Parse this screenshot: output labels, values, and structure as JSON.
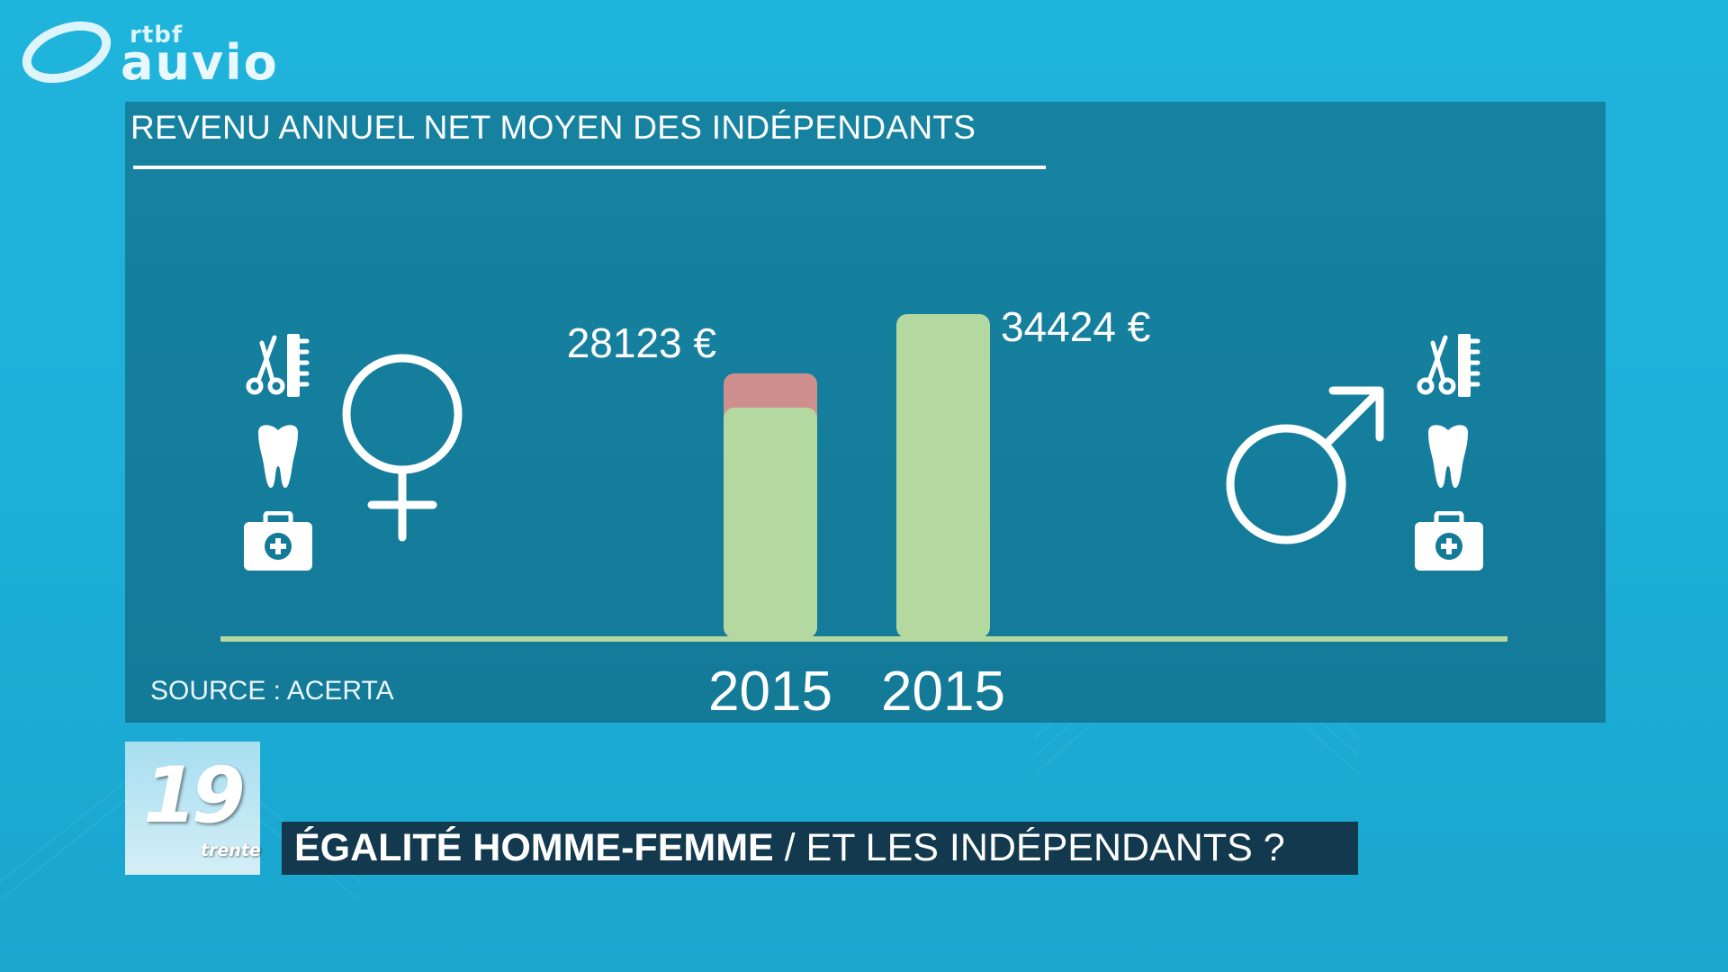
{
  "logo": {
    "small": "rtbf",
    "big": "auvio"
  },
  "chart_data": {
    "type": "bar",
    "title": "REVENU ANNUEL NET MOYEN DES INDÉPENDANTS",
    "source": "SOURCE : ACERTA",
    "categories": [
      "2015",
      "2015"
    ],
    "values": [
      28123,
      34424
    ],
    "value_labels": [
      "28123 €",
      "34424 €"
    ],
    "colors": {
      "bar": "#b3d9a0",
      "gap": "#cf8f8f",
      "baseline": "#b3d9a0"
    },
    "ylim": [
      0,
      34424
    ]
  },
  "icons": {
    "left": [
      "scissors-comb-icon",
      "tooth-icon",
      "medical-kit-icon",
      "female-symbol-icon"
    ],
    "right": [
      "male-symbol-icon",
      "scissors-comb-icon",
      "tooth-icon",
      "medical-kit-icon"
    ]
  },
  "lower_third": {
    "number": "19",
    "subtitle": "trente",
    "headline_strong": "ÉGALITÉ HOMME-FEMME",
    "headline_rest": " / ET LES INDÉPENDANTS ?"
  }
}
